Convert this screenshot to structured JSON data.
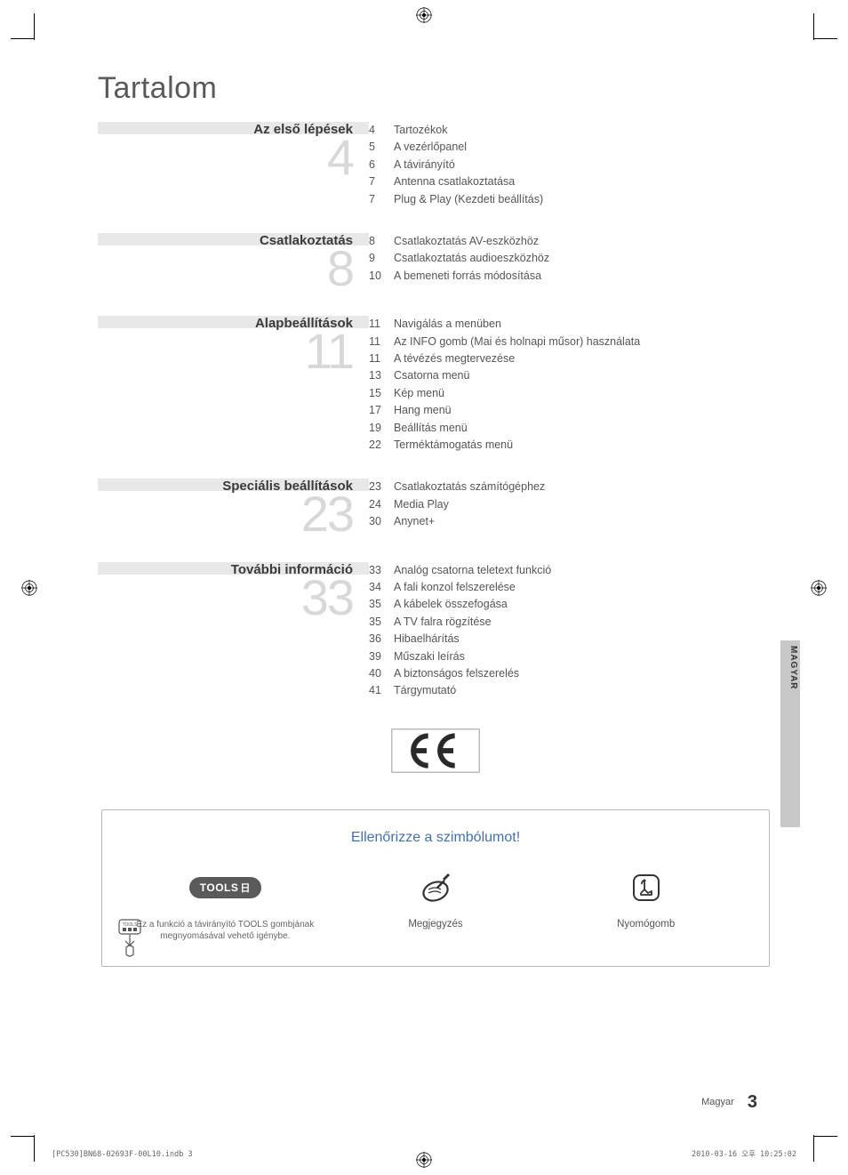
{
  "title": "Tartalom",
  "sections": [
    {
      "heading": "Az első lépések",
      "bignum": "4",
      "items": [
        {
          "page": "4",
          "label": "Tartozékok"
        },
        {
          "page": "5",
          "label": "A vezérlőpanel"
        },
        {
          "page": "6",
          "label": "A távirányító"
        },
        {
          "page": "7",
          "label": "Antenna csatlakoztatása"
        },
        {
          "page": "7",
          "label": "Plug & Play (Kezdeti beállítás)"
        }
      ]
    },
    {
      "heading": "Csatlakoztatás",
      "bignum": "8",
      "items": [
        {
          "page": "8",
          "label": "Csatlakoztatás AV-eszközhöz"
        },
        {
          "page": "9",
          "label": "Csatlakoztatás audioeszközhöz"
        },
        {
          "page": "10",
          "label": "A bemeneti forrás módosítása"
        }
      ]
    },
    {
      "heading": "Alapbeállítások",
      "bignum": "11",
      "items": [
        {
          "page": "11",
          "label": "Navigálás a menüben"
        },
        {
          "page": "11",
          "label": "Az INFO gomb (Mai és holnapi műsor) használata"
        },
        {
          "page": "11",
          "label": "A tévézés megtervezése"
        },
        {
          "page": "13",
          "label": "Csatorna menü"
        },
        {
          "page": "15",
          "label": "Kép menü"
        },
        {
          "page": "17",
          "label": "Hang menü"
        },
        {
          "page": "19",
          "label": "Beállítás menü"
        },
        {
          "page": "22",
          "label": "Terméktámogatás menü"
        }
      ]
    },
    {
      "heading": "Speciális beállítások",
      "bignum": "23",
      "items": [
        {
          "page": "23",
          "label": "Csatlakoztatás számítógéphez"
        },
        {
          "page": "24",
          "label": "Media Play"
        },
        {
          "page": "30",
          "label": "Anynet+"
        }
      ]
    },
    {
      "heading": "További információ",
      "bignum": "33",
      "items": [
        {
          "page": "33",
          "label": "Analóg csatorna teletext funkció"
        },
        {
          "page": "34",
          "label": "A fali konzol felszerelése"
        },
        {
          "page": "35",
          "label": "A kábelek összefogása"
        },
        {
          "page": "35",
          "label": "A TV falra rögzítése"
        },
        {
          "page": "36",
          "label": "Hibaelhárítás"
        },
        {
          "page": "39",
          "label": "Műszaki leírás"
        },
        {
          "page": "40",
          "label": "A biztonságos felszerelés"
        },
        {
          "page": "41",
          "label": "Tárgymutató"
        }
      ]
    }
  ],
  "symbolBox": {
    "title": "Ellenőrizze a szimbólumot!",
    "cols": [
      {
        "badge": "TOOLS",
        "sub": "Ez a funkció a távirányító TOOLS gombjának megnyomásával vehető igénybe."
      },
      {
        "label": "Megjegyzés"
      },
      {
        "label": "Nyomógomb"
      }
    ]
  },
  "sideTab": "MAGYAR",
  "footer": {
    "lang": "Magyar",
    "num": "3"
  },
  "printFooter": {
    "left": "[PC530]BN68-02693F-00L10.indb   3",
    "right": "2010-03-16   오후 10:25:02"
  },
  "colors": {
    "bar": "#e8e8e8",
    "bignum": "#d8d8d8",
    "symbolTitle": "#4472a8",
    "sideTab": "#c8c8c8"
  }
}
